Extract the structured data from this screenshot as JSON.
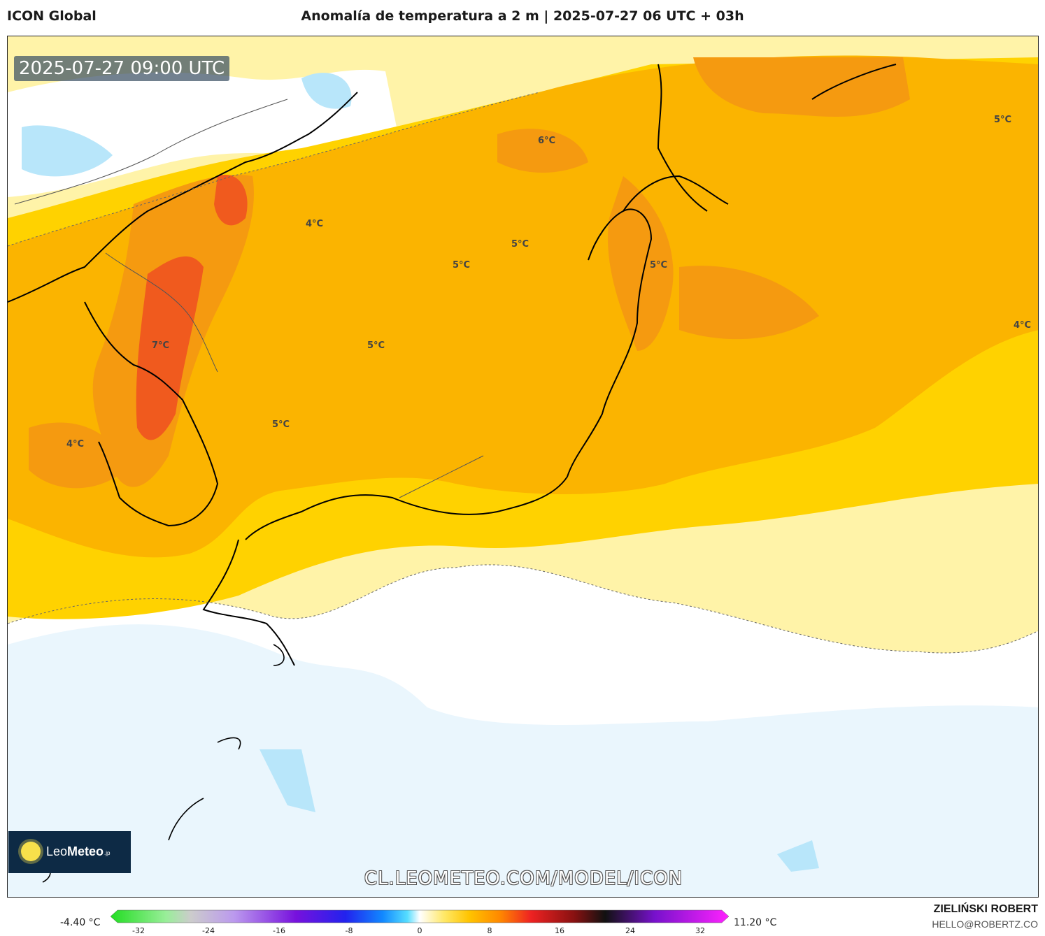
{
  "header": {
    "model_name": "ICON Global",
    "title": "Anomalía de temperatura a 2 m | 2025-07-27 06 UTC + 03h"
  },
  "map": {
    "valid_time": "2025-07-27 09:00 UTC",
    "contour_labels": [
      {
        "text": "6°C"
      },
      {
        "text": "5°C"
      },
      {
        "text": "4°C"
      },
      {
        "text": "5°C"
      },
      {
        "text": "5°C"
      },
      {
        "text": "5°C"
      },
      {
        "text": "4°C"
      },
      {
        "text": "7°C"
      },
      {
        "text": "5°C"
      },
      {
        "text": "5°C"
      },
      {
        "text": "4°C"
      }
    ],
    "logo": {
      "brand_light": "Leo",
      "brand_bold": "Meteo",
      "tld": ".jp"
    },
    "watermark": "CL.LEOMETEO.COM/MODEL/ICON"
  },
  "legend": {
    "min_label": "-4.40 °C",
    "max_label": "11.20 °C",
    "ticks": [
      "-32",
      "-24",
      "-16",
      "-8",
      "0",
      "8",
      "16",
      "24",
      "32"
    ]
  },
  "credits": {
    "author": "ZIELIŃSKI ROBERT",
    "email": "HELLO@ROBERTZ.CO"
  },
  "colors": {
    "orange_dark": "#f59a10",
    "orange": "#fbb400",
    "yellow": "#ffd200",
    "pale_yellow": "#fff3a8",
    "red": "#f05a1e",
    "ocean_cold": "#eaf6fd",
    "blue_light": "#b8e6fa",
    "land_line": "#000000"
  }
}
